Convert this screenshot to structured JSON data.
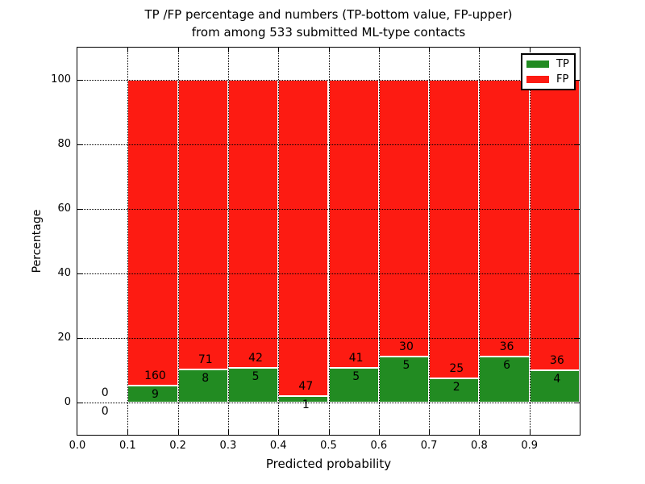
{
  "figure": {
    "title_line1": "TP /FP percentage and numbers (TP-bottom value, FP-upper)",
    "title_line2": "from among 533 submitted ML-type contacts",
    "xlabel": "Predicted probability",
    "ylabel": "Percentage"
  },
  "chart_data": {
    "type": "bar",
    "stacked": true,
    "title": "TP /FP percentage and numbers (TP-bottom value, FP-upper) from among 533 submitted ML-type contacts",
    "xlabel": "Predicted probability",
    "ylabel": "Percentage",
    "total_contacts": 533,
    "xlim": [
      0.0,
      1.0
    ],
    "ylim": [
      -10,
      110
    ],
    "xtick_labels": [
      "0.0",
      "0.1",
      "0.2",
      "0.3",
      "0.4",
      "0.5",
      "0.6",
      "0.7",
      "0.8",
      "0.9"
    ],
    "yticks": [
      0,
      20,
      40,
      60,
      80,
      100
    ],
    "grid": true,
    "grid_style": "dotted",
    "legend_position": "upper right",
    "colors": {
      "tp": "#228b22",
      "fp": "#fd1b12",
      "bar_edge": "#ffffff"
    },
    "legend": [
      {
        "key": "tp",
        "label": "TP"
      },
      {
        "key": "fp",
        "label": "FP"
      }
    ],
    "bins": [
      {
        "range": [
          0.0,
          0.1
        ],
        "tp_count": 0,
        "fp_count": 0,
        "tp_pct": 0,
        "fp_pct": 0
      },
      {
        "range": [
          0.1,
          0.2
        ],
        "tp_count": 9,
        "fp_count": 160,
        "tp_pct": 5.33,
        "fp_pct": 94.67
      },
      {
        "range": [
          0.2,
          0.3
        ],
        "tp_count": 8,
        "fp_count": 71,
        "tp_pct": 10.13,
        "fp_pct": 89.87
      },
      {
        "range": [
          0.3,
          0.4
        ],
        "tp_count": 5,
        "fp_count": 42,
        "tp_pct": 10.64,
        "fp_pct": 89.36
      },
      {
        "range": [
          0.4,
          0.5
        ],
        "tp_count": 1,
        "fp_count": 47,
        "tp_pct": 2.08,
        "fp_pct": 97.92
      },
      {
        "range": [
          0.5,
          0.6
        ],
        "tp_count": 5,
        "fp_count": 41,
        "tp_pct": 10.87,
        "fp_pct": 89.13
      },
      {
        "range": [
          0.6,
          0.7
        ],
        "tp_count": 5,
        "fp_count": 30,
        "tp_pct": 14.29,
        "fp_pct": 85.71
      },
      {
        "range": [
          0.7,
          0.8
        ],
        "tp_count": 2,
        "fp_count": 25,
        "tp_pct": 7.41,
        "fp_pct": 92.59
      },
      {
        "range": [
          0.8,
          0.9
        ],
        "tp_count": 6,
        "fp_count": 36,
        "tp_pct": 14.29,
        "fp_pct": 85.71
      },
      {
        "range": [
          0.9,
          1.0
        ],
        "tp_count": 4,
        "fp_count": 36,
        "tp_pct": 10.0,
        "fp_pct": 90.0
      }
    ]
  }
}
